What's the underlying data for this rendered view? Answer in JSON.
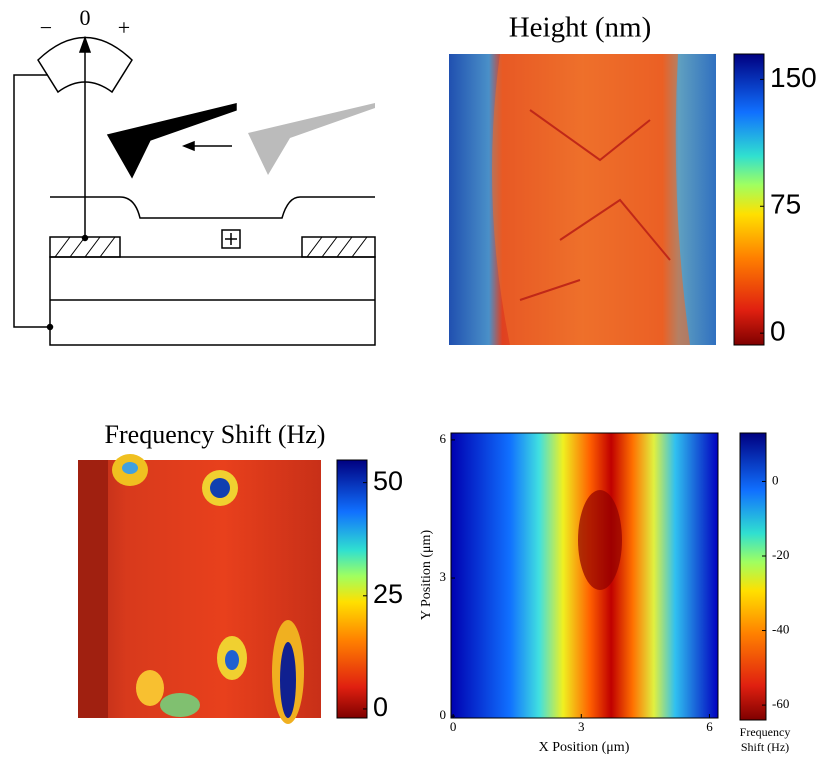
{
  "schematic": {
    "minus": "−",
    "zero": "0",
    "plus": "+"
  },
  "height_map": {
    "title": "Height (nm)",
    "clim": [
      -7,
      165
    ],
    "colorbar_ticks": [
      0,
      75,
      150
    ]
  },
  "freq_map": {
    "title": "Frequency Shift (Hz)",
    "clim": [
      -2,
      55
    ],
    "colorbar_ticks": [
      0,
      25,
      50
    ]
  },
  "scan_map": {
    "xlabel": "X Position (μm)",
    "ylabel": "Y Position (μm)",
    "xlim": [
      -0.05,
      6.2
    ],
    "ylim": [
      -0.04,
      6.15
    ],
    "xticks": [
      0,
      3,
      6
    ],
    "yticks": [
      0,
      3,
      6
    ],
    "clim": [
      -64,
      13
    ],
    "colorbar_ticks": [
      -60,
      -40,
      -20,
      0
    ],
    "colorbar_label": [
      "Frequency",
      "Shift (Hz)"
    ]
  }
}
